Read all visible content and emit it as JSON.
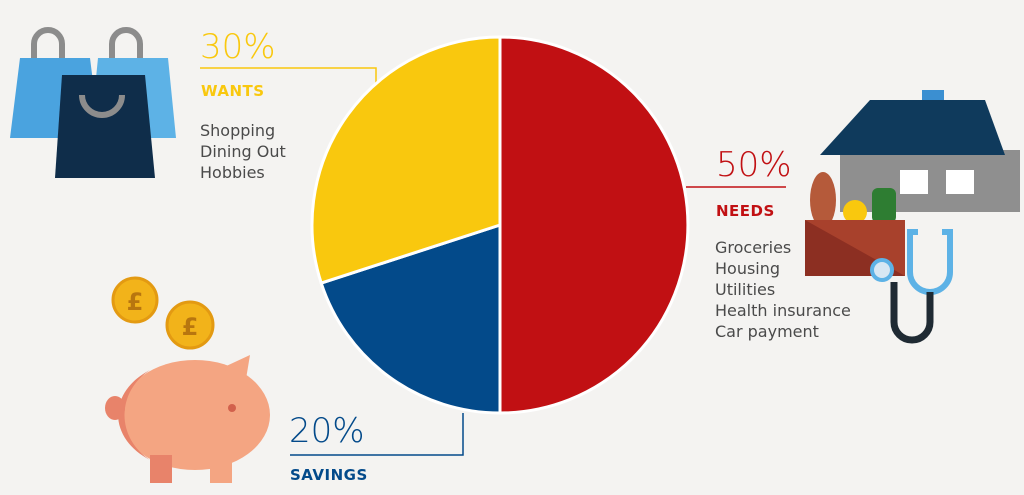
{
  "chart_data": {
    "type": "pie",
    "slices": [
      {
        "label": "NEEDS",
        "percent_label": "50%",
        "value": 50,
        "color": "#c11013",
        "items": [
          "Groceries",
          "Housing",
          "Utilities",
          "Health insurance",
          "Car payment"
        ]
      },
      {
        "label": "SAVINGS",
        "percent_label": "20%",
        "value": 20,
        "color": "#034a8a",
        "items": []
      },
      {
        "label": "WANTS",
        "percent_label": "30%",
        "value": 30,
        "color": "#f9c80e",
        "items": [
          "Shopping",
          "Dining Out",
          "Hobbies"
        ]
      }
    ],
    "start_angle": "top",
    "direction": "clockwise"
  },
  "icons": [
    "shopping-bags-icon",
    "house-icon",
    "grocery-bag-icon",
    "stethoscope-icon",
    "piggy-bank-icon",
    "pound-coin-icon"
  ],
  "coin_symbol": "£"
}
